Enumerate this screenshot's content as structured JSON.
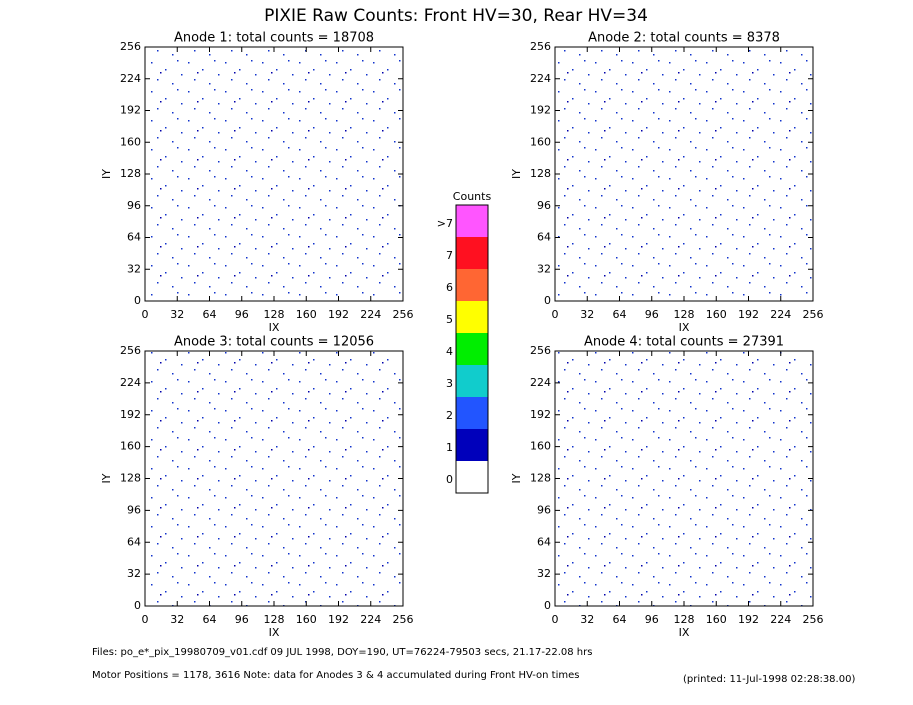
{
  "title": "PIXIE Raw Counts:  Front HV=30, Rear HV=34",
  "panels": [
    {
      "title": "Anode 1: total counts = 18708",
      "x_label": "IX",
      "y_label": "IY",
      "xlim": [
        0,
        256
      ],
      "ylim": [
        0,
        256
      ],
      "xticks": [
        0,
        32,
        64,
        96,
        128,
        160,
        192,
        224,
        256
      ],
      "yticks": [
        0,
        32,
        64,
        96,
        128,
        160,
        192,
        224,
        256
      ]
    },
    {
      "title": "Anode 2: total counts = 8378",
      "x_label": "IX",
      "y_label": "IY",
      "xlim": [
        0,
        256
      ],
      "ylim": [
        0,
        256
      ],
      "xticks": [
        0,
        32,
        64,
        96,
        128,
        160,
        192,
        224,
        256
      ],
      "yticks": [
        0,
        32,
        64,
        96,
        128,
        160,
        192,
        224,
        256
      ]
    },
    {
      "title": "Anode 3: total counts = 12056",
      "x_label": "IX",
      "y_label": "IY",
      "xlim": [
        0,
        256
      ],
      "ylim": [
        0,
        256
      ],
      "xticks": [
        0,
        32,
        64,
        96,
        128,
        160,
        192,
        224,
        256
      ],
      "yticks": [
        0,
        32,
        64,
        96,
        128,
        160,
        192,
        224,
        256
      ]
    },
    {
      "title": "Anode 4: total counts = 27391",
      "x_label": "IX",
      "y_label": "IY",
      "xlim": [
        0,
        256
      ],
      "ylim": [
        0,
        256
      ],
      "xticks": [
        0,
        32,
        64,
        96,
        128,
        160,
        192,
        224,
        256
      ],
      "yticks": [
        0,
        32,
        64,
        96,
        128,
        160,
        192,
        224,
        256
      ]
    }
  ],
  "colorbar": {
    "title": "Counts",
    "labels": [
      ">7",
      "7",
      "6",
      "5",
      "4",
      "3",
      "2",
      "1",
      "0"
    ],
    "colors": [
      "#ff55ff",
      "#ff1020",
      "#ff6633",
      "#ffff00",
      "#00ee00",
      "#11cccc",
      "#2255ff",
      "#0000bb",
      "#ffffff"
    ]
  },
  "footer": {
    "files": "Files: po_e*_pix_19980709_v01.cdf    09 JUL 1998, DOY=190, UT=76224-79503 secs, 21.17-22.08 hrs",
    "motor": "Motor Positions = 1178, 3616   Note: data for Anodes 3 & 4 accumulated during Front HV-on times",
    "printed": "(printed: 11-Jul-1998 02:28:38.00)"
  }
}
